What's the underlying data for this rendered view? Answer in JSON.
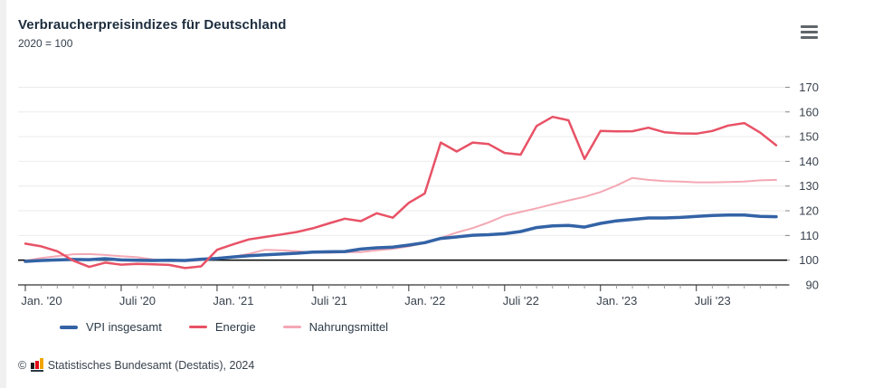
{
  "header": {
    "title": "Verbraucherpreisindizes für Deutschland",
    "subtitle": "2020 = 100"
  },
  "legend": {
    "items": [
      {
        "label": "VPI insgesamt",
        "color": "#3363a6",
        "thickness": 4
      },
      {
        "label": "Energie",
        "color": "#e85266",
        "thickness": 3
      },
      {
        "label": "Nahrungsmittel",
        "color": "#f4a8b4",
        "thickness": 3
      }
    ]
  },
  "footer": {
    "copyright": "©",
    "source": "Statistisches Bundesamt (Destatis), 2024",
    "logo_colors": {
      "black": "#1a1a1a",
      "red": "#e30613",
      "gold": "#f0a500"
    }
  },
  "chart_data": {
    "type": "line",
    "title": "Verbraucherpreisindizes für Deutschland",
    "subtitle": "2020 = 100",
    "x_unit": "month",
    "x_range": [
      "Jan. 2020",
      "Dez. 2023"
    ],
    "xticks": [
      "Jan. '20",
      "Juli '20",
      "Jan. '21",
      "Juli '21",
      "Jan. '22",
      "Juli '22",
      "Jan. '23",
      "Juli '23"
    ],
    "yticks": [
      170,
      160,
      150,
      140,
      130,
      120,
      110,
      100,
      90
    ],
    "ylim": [
      90,
      170
    ],
    "baseline": 100,
    "grid": true,
    "legend_position": "bottom",
    "colors": {
      "grid": "#ebebeb",
      "axis": "#333333",
      "baseline": "#000000",
      "tick_major": "#333333",
      "tick_minor": "#999999",
      "tick_label": "#39424e"
    },
    "series": [
      {
        "name": "VPI insgesamt",
        "color": "#3363a6",
        "width": 3.5,
        "values": [
          99.5,
          99.9,
          100.1,
          100.3,
          100.2,
          100.6,
          100.1,
          100.0,
          99.9,
          100.0,
          99.9,
          100.4,
          100.7,
          101.3,
          101.8,
          102.2,
          102.5,
          102.8,
          103.3,
          103.4,
          103.5,
          104.5,
          105.0,
          105.3,
          106.1,
          107.1,
          108.8,
          109.4,
          110.1,
          110.3,
          110.7,
          111.6,
          113.2,
          113.9,
          114.1,
          113.4,
          114.9,
          115.9,
          116.5,
          117.1,
          117.1,
          117.3,
          117.7,
          118.1,
          118.3,
          118.3,
          117.7,
          117.6
        ]
      },
      {
        "name": "Energie",
        "color": "#e85266",
        "width": 2.5,
        "values": [
          106.7,
          105.6,
          103.6,
          99.8,
          97.3,
          99.0,
          98.2,
          98.5,
          98.3,
          98.1,
          96.8,
          97.5,
          104.2,
          106.4,
          108.4,
          109.4,
          110.4,
          111.4,
          112.9,
          114.9,
          116.8,
          115.8,
          119.0,
          117.2,
          123.2,
          127.0,
          147.6,
          144.0,
          147.6,
          147.0,
          143.4,
          142.7,
          154.3,
          158.0,
          156.6,
          141.0,
          152.3,
          152.1,
          152.2,
          153.6,
          151.8,
          151.3,
          151.2,
          152.3,
          154.5,
          155.5,
          151.6,
          146.5
        ]
      },
      {
        "name": "Nahrungsmittel",
        "color": "#f4a8b4",
        "width": 2,
        "values": [
          99.8,
          100.9,
          101.6,
          102.4,
          102.5,
          102.1,
          101.6,
          101.2,
          100.3,
          99.8,
          99.6,
          100.0,
          100.6,
          101.4,
          102.6,
          104.2,
          104.0,
          103.6,
          103.1,
          103.0,
          103.2,
          103.3,
          104.0,
          104.6,
          105.6,
          107.0,
          109.0,
          111.2,
          113.0,
          115.3,
          118.0,
          119.5,
          121.0,
          122.6,
          124.2,
          125.6,
          127.6,
          130.2,
          133.3,
          132.5,
          132.0,
          131.8,
          131.5,
          131.5,
          131.6,
          131.8,
          132.3,
          132.5
        ]
      }
    ]
  }
}
